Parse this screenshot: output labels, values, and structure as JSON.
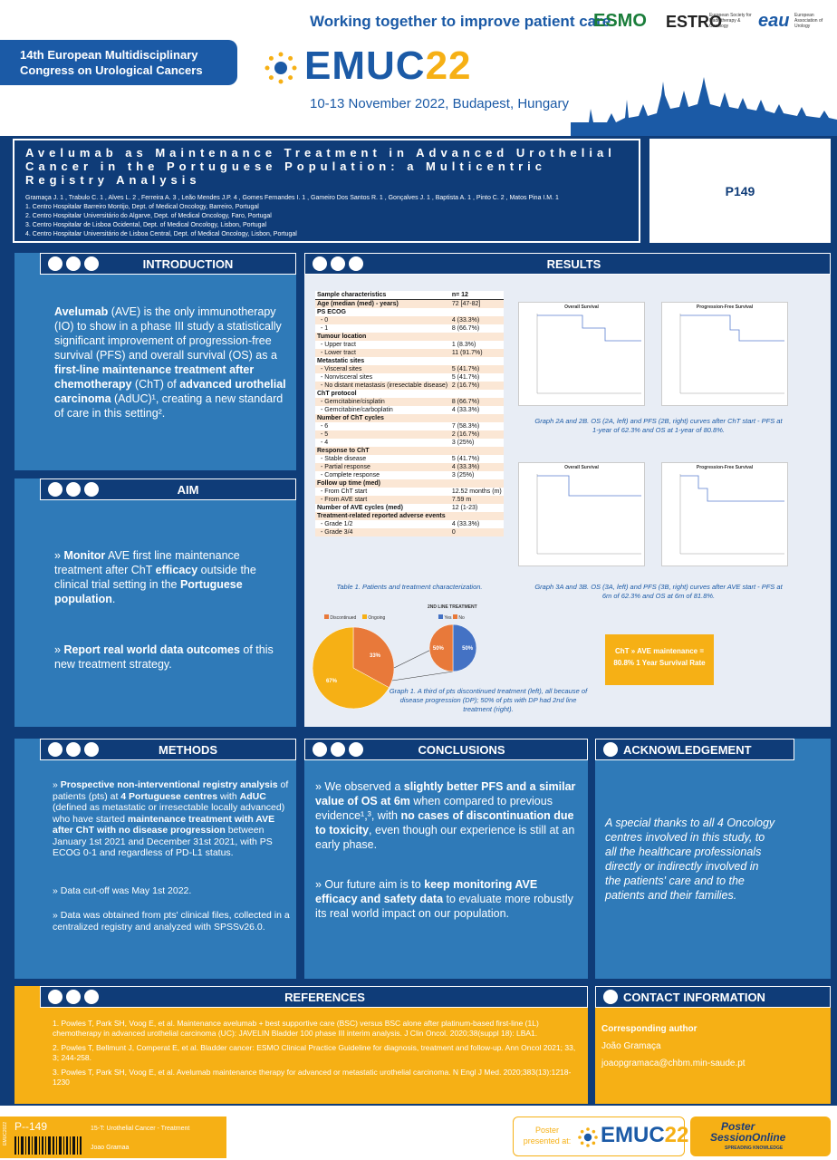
{
  "header": {
    "tagline": "Working together to improve patient care",
    "congress_line1": "14th European Multidisciplinary",
    "congress_line2": "Congress on Urological Cancers",
    "logo_text": "EMUC",
    "logo_year": "22",
    "dates": "10-13 November 2022, Budapest, Hungary",
    "sponsors": {
      "esmo": "ESMO",
      "estro": "ESTRO",
      "estro_sub": "European Society for Radiotherapy & Oncology",
      "eau": "eau",
      "eau_sub": "European Association of Urology"
    }
  },
  "title": {
    "text": "Avelumab as Maintenance Treatment in Advanced Urothelial Cancer in the Portuguese Population: a Multicentric Registry Analysis",
    "authors": "Gramaça J. 1 , Trabulo C. 1 , Alves L. 2 , Ferreira A. 3 , Leão Mendes J.P. 4 , Gomes Fernandes I. 1 , Gameiro Dos Santos R. 1 , Gonçalves J. 1 , Baptista A. 1 , Pinto C. 2 , Matos Pina I.M. 1",
    "affil1": "1. Centro Hospitalar Barreiro Montijo, Dept. of Medical Oncology, Barreiro, Portugal",
    "affil2": "2. Centro Hospitalar Universitário do Algarve, Dept. of Medical Oncology, Faro, Portugal",
    "affil3": "3. Centro Hospitalar de Lisboa Ocidental, Dept. of Medical Oncology, Lisbon, Portugal",
    "affil4": "4. Centro Hospitalar Universitário de Lisboa Central, Dept. of Medical Oncology, Lisbon, Portugal",
    "poster_id": "P149"
  },
  "sections": {
    "introduction": "INTRODUCTION",
    "aim": "AIM",
    "results": "RESULTS",
    "methods": "METHODS",
    "conclusions": "CONCLUSIONS",
    "acknowledgement": "ACKNOWLEDGEMENT",
    "references": "REFERENCES",
    "contact": "CONTACT INFORMATION"
  },
  "introduction": {
    "p1a": "Avelumab",
    "p1b": " (AVE) is the only immunotherapy (IO) to show in a phase III study a statistically significant improvement of progression-free survival (PFS) and overall survival (OS) as a ",
    "p1c": "first-line maintenance treatment after chemotherapy",
    "p1d": " (ChT) of ",
    "p1e": "advanced urothelial carcinoma",
    "p1f": " (AdUC)¹, creating a new standard of care in this setting²."
  },
  "aim": {
    "a1": "» ",
    "a1b": "Monitor",
    "a1c": " AVE first line maintenance treatment after ChT ",
    "a1d": "efficacy",
    "a1e": " outside the clinical trial setting in the ",
    "a1f": "Portuguese population",
    "a1g": ".",
    "a2": "» ",
    "a2b": "Report real world data outcomes",
    "a2c": " of this new treatment strategy."
  },
  "table": {
    "h1": "Sample characteristics",
    "h2": "n= 12",
    "rows": [
      [
        "Age (median (med) - years)",
        "72 [47-82]"
      ],
      [
        "PS ECOG",
        ""
      ],
      [
        "  - 0",
        "4 (33.3%)"
      ],
      [
        "  - 1",
        "8 (66.7%)"
      ],
      [
        "Tumour location",
        ""
      ],
      [
        "  - Upper tract",
        "1 (8.3%)"
      ],
      [
        "  - Lower tract",
        "11 (91.7%)"
      ],
      [
        "Metastatic sites",
        ""
      ],
      [
        "  - Visceral sites",
        "5 (41.7%)"
      ],
      [
        "  - Nonvisceral sites",
        "5 (41.7%)"
      ],
      [
        "  - No distant metastasis (irresectable disease)",
        "2 (16.7%)"
      ],
      [
        "ChT protocol",
        ""
      ],
      [
        "  - Gemcitabine/cisplatin",
        "8 (66.7%)"
      ],
      [
        "  - Gemcitabine/carboplatin",
        "4 (33.3%)"
      ],
      [
        "Number of ChT cycles",
        ""
      ],
      [
        "  - 6",
        "7 (58.3%)"
      ],
      [
        "  - 5",
        "2 (16.7%)"
      ],
      [
        "  - 4",
        "3 (25%)"
      ],
      [
        "Response to ChT",
        ""
      ],
      [
        "  - Stable disease",
        "5 (41.7%)"
      ],
      [
        "  - Partial response",
        "4 (33.3%)"
      ],
      [
        "  - Complete response",
        "3 (25%)"
      ],
      [
        "Follow up time (med)",
        ""
      ],
      [
        "  - From ChT start",
        "12.52 months (m)"
      ],
      [
        "  - From AVE start",
        "7.59 m"
      ],
      [
        "Number of AVE cycles (med)",
        "12 (1-23)"
      ],
      [
        "Treatment-related reported adverse events",
        ""
      ],
      [
        "  - Grade 1/2",
        "4 (33.3%)"
      ],
      [
        "  - Grade 3/4",
        "0"
      ]
    ],
    "caption": "Table 1. Patients and treatment characterization."
  },
  "graphs": {
    "g2_caption": "Graph 2A and 2B. OS (2A, left) and PFS (2B, right) curves after ChT start - PFS at 1-year of 62.3% and OS at 1-year of 80.8%.",
    "g3_caption": "Graph 3A and 3B. OS (3A, left) and PFS (3B, right) curves after AVE start - PFS at 6m of 62.3% and OS at 6m of 81.8%.",
    "g1_caption": "Graph 1. A third of pts discontinued treatment (left), all because of disease progression (DP); 50% of pts with DP had 2nd line treatment (right).",
    "os_title": "Overall Survival",
    "pfs_title": "Progression-Free Survival",
    "pie_title": "2ND LINE TREATMENT",
    "legend_discontinued": "Discontinued",
    "legend_ongoing": "Ongoing",
    "legend_yes": "Yes",
    "legend_no": "No",
    "survival_box": "ChT » AVE maintenance = 80.8% 1 Year Survival Rate"
  },
  "chart_data": [
    {
      "type": "pie",
      "title": "",
      "categories": [
        "Discontinued",
        "Ongoing"
      ],
      "values": [
        33,
        67
      ]
    },
    {
      "type": "pie",
      "title": "2ND LINE TREATMENT",
      "categories": [
        "Yes",
        "No"
      ],
      "values": [
        50,
        50
      ]
    }
  ],
  "methods": {
    "m1a": "» ",
    "m1b": "Prospective non-interventional registry analysis",
    "m1c": " of patients (pts) at ",
    "m1d": "4 Portuguese centres",
    "m1e": " with ",
    "m1f": "AdUC",
    "m1g": " (defined as metastatic or irresectable locally advanced) who have started ",
    "m1h": "maintenance treatment with AVE after ChT with no disease progression",
    "m1i": " between January 1st 2021 and December 31st 2021, with PS ECOG 0-1 and regardless of PD-L1 status.",
    "m2": "» Data cut-off was May 1st 2022.",
    "m3": "» Data was obtained from pts' clinical files, collected in a centralized registry and analyzed with SPSSv26.0."
  },
  "conclusions": {
    "c1a": "» We observed a ",
    "c1b": "slightly better PFS and a similar value of OS at 6m",
    "c1c": " when compared to previous evidence¹,³, with ",
    "c1d": "no cases of discontinuation due to toxicity",
    "c1e": ", even though our experience is still at an early phase.",
    "c2a": "» Our future aim is to ",
    "c2b": "keep monitoring AVE efficacy and safety data",
    "c2c": " to evaluate more robustly its real world impact on our population."
  },
  "acknowledgement": "A special thanks to all 4 Oncology centres involved in this study, to all the healthcare professionals directly or indirectly involved in the patients' care and to the patients and their families.",
  "references": {
    "r1": "1. Powles T, Park SH, Voog E, et al. Maintenance avelumab + best supportive care (BSC) versus BSC alone after platinum-based first-line (1L) chemotherapy in advanced urothelial carcinoma (UC): JAVELIN Bladder 100 phase III interim analysis. J Clin Oncol. 2020;38(suppl 18): LBA1.",
    "r2": "2. Powles T, Bellmunt J, Comperat E, et al. Bladder cancer: ESMO Clinical Practice Guideline for diagnosis, treatment and follow-up. Ann Oncol 2021; 33, 3; 244-258.",
    "r3": "3. Powles T, Park SH, Voog E, et al. Avelumab maintenance therapy for advanced or metastatic urothelial carcinoma. N Engl J Med. 2020;383(13):1218-1230"
  },
  "contact": {
    "label": "Corresponding author",
    "name": "João Gramaça",
    "email": "joaopgramaca@chbm.min-saude.pt"
  },
  "footer": {
    "side": "EMUC2022",
    "poster_no": "P--149",
    "category": "15-T: Urothelial Cancer - Treatment",
    "author": "Joao Gramaa",
    "presented": "Poster presented at:",
    "logo_text": "EMUC",
    "logo_year": "22",
    "pso_line1": "Poster",
    "pso_line2": "SessionOnline",
    "pso_sub": "SPREADING KNOWLEDGE"
  }
}
